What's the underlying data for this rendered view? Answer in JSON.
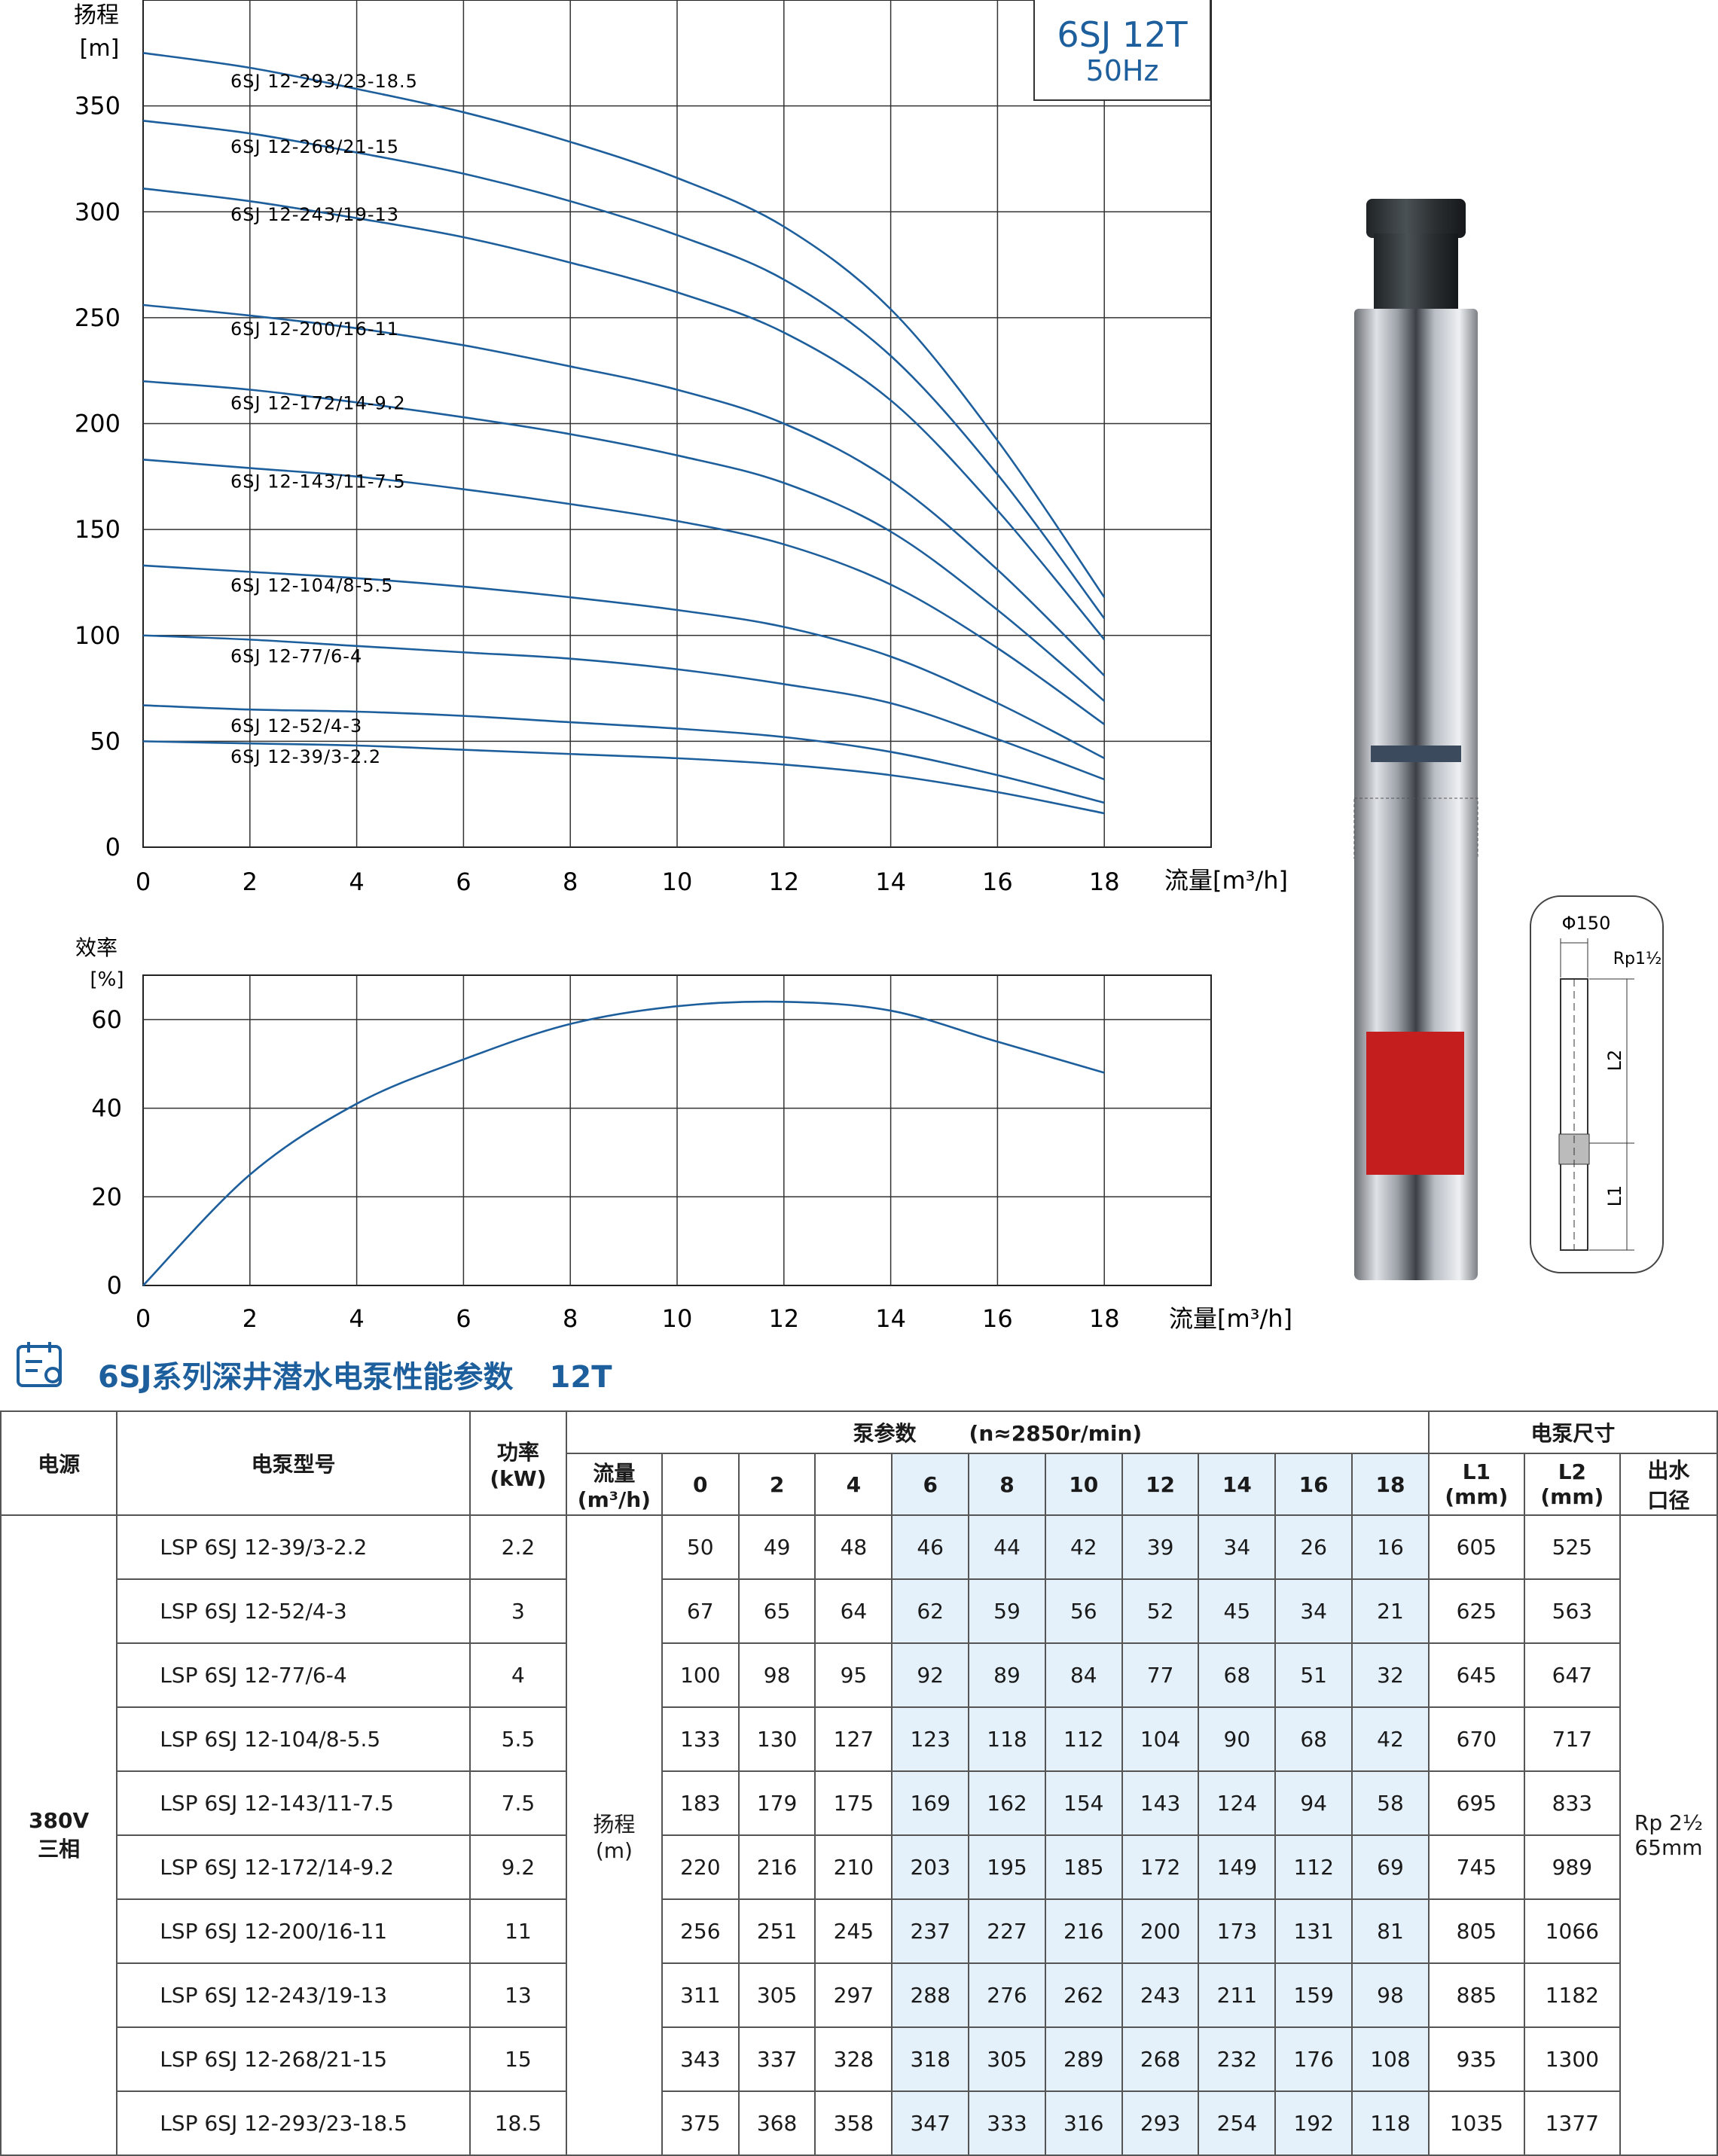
{
  "badge": {
    "model": "6SJ 12T",
    "freq": "50Hz"
  },
  "head_chart": {
    "y_label_line1": "扬程",
    "y_label_line2": "[m]",
    "x_label": "流量[m³/h]",
    "y_ticks": [
      "0",
      "50",
      "100",
      "150",
      "200",
      "250",
      "300",
      "350"
    ],
    "x_ticks": [
      "0",
      "2",
      "4",
      "6",
      "8",
      "10",
      "12",
      "14",
      "16",
      "18"
    ]
  },
  "eff_chart": {
    "y_label_line1": "效率",
    "y_label_line2": "[%]",
    "x_label": "流量[m³/h]",
    "y_ticks": [
      "0",
      "20",
      "40",
      "60"
    ],
    "x_ticks": [
      "0",
      "2",
      "4",
      "6",
      "8",
      "10",
      "12",
      "14",
      "16",
      "18"
    ]
  },
  "dimensions": {
    "diameter": "Φ150",
    "thread": "Rp1½",
    "l1": "L1",
    "l2": "L2"
  },
  "section_title": {
    "text": "6SJ系列深井潜水电泵性能参数",
    "code": "12T"
  },
  "table": {
    "headers": {
      "power_source": "电源",
      "model": "电泵型号",
      "power_line1": "功率",
      "power_line2": "(kW)",
      "pump_params": "泵参数",
      "speed": "(n≈2850r/min)",
      "flow_line1": "流量",
      "flow_line2": "(m³/h)",
      "pump_size": "电泵尺寸",
      "l1_line1": "L1",
      "l1_line2": "(mm)",
      "l2_line1": "L2",
      "l2_line2": "(mm)",
      "outlet_line1": "出水",
      "outlet_line2": "口径"
    },
    "flows": [
      "0",
      "2",
      "4",
      "6",
      "8",
      "10",
      "12",
      "14",
      "16",
      "18"
    ],
    "power_source_line1": "380V",
    "power_source_line2": "三相",
    "head_label_line1": "扬程",
    "head_label_line2": "(m)",
    "outlet_line1": "Rp 2½",
    "outlet_line2": "65mm",
    "rows": [
      {
        "model": "LSP 6SJ 12-39/3-2.2",
        "power": "2.2",
        "heads": [
          "50",
          "49",
          "48",
          "46",
          "44",
          "42",
          "39",
          "34",
          "26",
          "16"
        ],
        "l1": "605",
        "l2": "525"
      },
      {
        "model": "LSP 6SJ 12-52/4-3",
        "power": "3",
        "heads": [
          "67",
          "65",
          "64",
          "62",
          "59",
          "56",
          "52",
          "45",
          "34",
          "21"
        ],
        "l1": "625",
        "l2": "563"
      },
      {
        "model": "LSP 6SJ 12-77/6-4",
        "power": "4",
        "heads": [
          "100",
          "98",
          "95",
          "92",
          "89",
          "84",
          "77",
          "68",
          "51",
          "32"
        ],
        "l1": "645",
        "l2": "647"
      },
      {
        "model": "LSP 6SJ 12-104/8-5.5",
        "power": "5.5",
        "heads": [
          "133",
          "130",
          "127",
          "123",
          "118",
          "112",
          "104",
          "90",
          "68",
          "42"
        ],
        "l1": "670",
        "l2": "717"
      },
      {
        "model": "LSP 6SJ 12-143/11-7.5",
        "power": "7.5",
        "heads": [
          "183",
          "179",
          "175",
          "169",
          "162",
          "154",
          "143",
          "124",
          "94",
          "58"
        ],
        "l1": "695",
        "l2": "833"
      },
      {
        "model": "LSP 6SJ 12-172/14-9.2",
        "power": "9.2",
        "heads": [
          "220",
          "216",
          "210",
          "203",
          "195",
          "185",
          "172",
          "149",
          "112",
          "69"
        ],
        "l1": "745",
        "l2": "989"
      },
      {
        "model": "LSP 6SJ 12-200/16-11",
        "power": "11",
        "heads": [
          "256",
          "251",
          "245",
          "237",
          "227",
          "216",
          "200",
          "173",
          "131",
          "81"
        ],
        "l1": "805",
        "l2": "1066"
      },
      {
        "model": "LSP 6SJ 12-243/19-13",
        "power": "13",
        "heads": [
          "311",
          "305",
          "297",
          "288",
          "276",
          "262",
          "243",
          "211",
          "159",
          "98"
        ],
        "l1": "885",
        "l2": "1182"
      },
      {
        "model": "LSP 6SJ 12-268/21-15",
        "power": "15",
        "heads": [
          "343",
          "337",
          "328",
          "318",
          "305",
          "289",
          "268",
          "232",
          "176",
          "108"
        ],
        "l1": "935",
        "l2": "1300"
      },
      {
        "model": "LSP 6SJ 12-293/23-18.5",
        "power": "18.5",
        "heads": [
          "375",
          "368",
          "358",
          "347",
          "333",
          "316",
          "293",
          "254",
          "192",
          "118"
        ],
        "l1": "1035",
        "l2": "1377"
      }
    ]
  },
  "chart_data": [
    {
      "type": "line",
      "title": "6SJ 12T 50Hz",
      "xlabel": "流量[m³/h]",
      "ylabel": "扬程 [m]",
      "x": [
        0,
        2,
        4,
        6,
        8,
        10,
        12,
        14,
        16,
        18
      ],
      "xlim": [
        0,
        20
      ],
      "ylim": [
        0,
        400
      ],
      "grid": true,
      "color": "#1d5e9c",
      "series": [
        {
          "name": "6SJ 12-39/3-2.2",
          "values": [
            50,
            49,
            48,
            46,
            44,
            42,
            39,
            34,
            26,
            16
          ]
        },
        {
          "name": "6SJ 12-52/4-3",
          "values": [
            67,
            65,
            64,
            62,
            59,
            56,
            52,
            45,
            34,
            21
          ]
        },
        {
          "name": "6SJ 12-77/6-4",
          "values": [
            100,
            98,
            95,
            92,
            89,
            84,
            77,
            68,
            51,
            32
          ]
        },
        {
          "name": "6SJ 12-104/8-5.5",
          "values": [
            133,
            130,
            127,
            123,
            118,
            112,
            104,
            90,
            68,
            42
          ]
        },
        {
          "name": "6SJ 12-143/11-7.5",
          "values": [
            183,
            179,
            175,
            169,
            162,
            154,
            143,
            124,
            94,
            58
          ]
        },
        {
          "name": "6SJ 12-172/14-9.2",
          "values": [
            220,
            216,
            210,
            203,
            195,
            185,
            172,
            149,
            112,
            69
          ]
        },
        {
          "name": "6SJ 12-200/16-11",
          "values": [
            256,
            251,
            245,
            237,
            227,
            216,
            200,
            173,
            131,
            81
          ]
        },
        {
          "name": "6SJ 12-243/19-13",
          "values": [
            311,
            305,
            297,
            288,
            276,
            262,
            243,
            211,
            159,
            98
          ]
        },
        {
          "name": "6SJ 12-268/21-15",
          "values": [
            343,
            337,
            328,
            318,
            305,
            289,
            268,
            232,
            176,
            108
          ]
        },
        {
          "name": "6SJ 12-293/23-18.5",
          "values": [
            375,
            368,
            358,
            347,
            333,
            316,
            293,
            254,
            192,
            118
          ]
        }
      ]
    },
    {
      "type": "line",
      "xlabel": "流量[m³/h]",
      "ylabel": "效率 [%]",
      "x": [
        0,
        2,
        4,
        6,
        8,
        10,
        12,
        14,
        16,
        18
      ],
      "xlim": [
        0,
        20
      ],
      "ylim": [
        0,
        70
      ],
      "grid": true,
      "color": "#1d5e9c",
      "series": [
        {
          "values": [
            0,
            25,
            41,
            51,
            59,
            63,
            64,
            62,
            55,
            48
          ]
        }
      ]
    }
  ]
}
